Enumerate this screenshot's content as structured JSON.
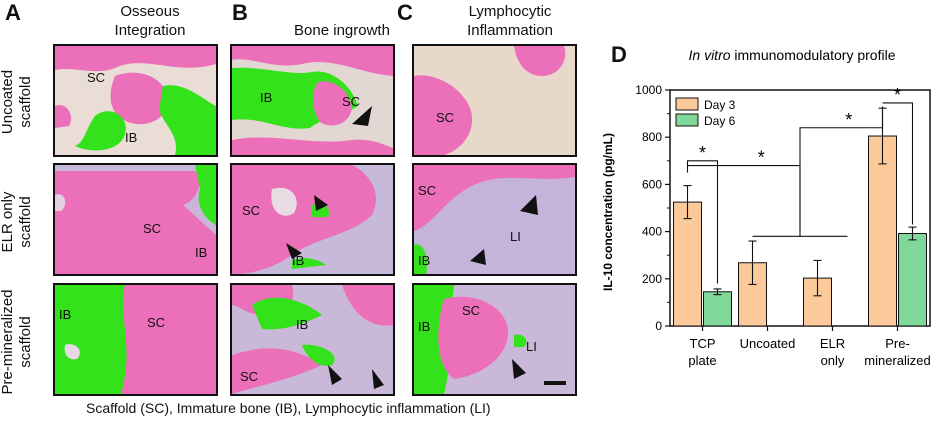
{
  "panels": {
    "A": {
      "letter": "A",
      "title": "Osseous\nIntegration"
    },
    "B": {
      "letter": "B",
      "title": "Bone ingrowth"
    },
    "C": {
      "letter": "C",
      "title": "Lymphocytic\nInflammation"
    },
    "D": {
      "letter": "D"
    }
  },
  "rows": [
    "Uncoated\nscaffold",
    "ELR only\nscaffold",
    "Pre-mineralized\nscaffold"
  ],
  "tile_labels": {
    "sc": "SC",
    "ib": "IB",
    "li": "LI"
  },
  "caption": "Scaffold (SC), Immature bone (IB), Lymphocytic inflammation (LI)",
  "colors": {
    "tissue_pink": "#ec6fba",
    "bone_green": "#33e21a",
    "background": "#e9ddd6",
    "stroma_purple": "#bfb3dd",
    "day3": "#fbc99a",
    "day6": "#7fd79a"
  },
  "chart_data": {
    "type": "bar",
    "title_italic": "In vitro",
    "title_rest": " immunomodulatory profile",
    "xlabel": "",
    "ylabel": "IL-10 concentration (pg/mL)",
    "ylim": [
      0,
      1000
    ],
    "yticks": [
      0,
      200,
      400,
      600,
      800,
      1000
    ],
    "categories": [
      "TCP\nplate",
      "Uncoated",
      "ELR\nonly",
      "Pre-\nmineralized"
    ],
    "series": [
      {
        "name": "Day 3",
        "color": "#fbc99a",
        "values": [
          525,
          268,
          203,
          805
        ],
        "errors": [
          70,
          92,
          75,
          118
        ]
      },
      {
        "name": "Day 6",
        "color": "#7fd79a",
        "values": [
          145,
          null,
          null,
          392
        ],
        "errors": [
          12,
          null,
          null,
          27
        ]
      }
    ],
    "significance": [
      "*",
      "*",
      "*",
      "*"
    ],
    "legend_position": "top-left"
  }
}
